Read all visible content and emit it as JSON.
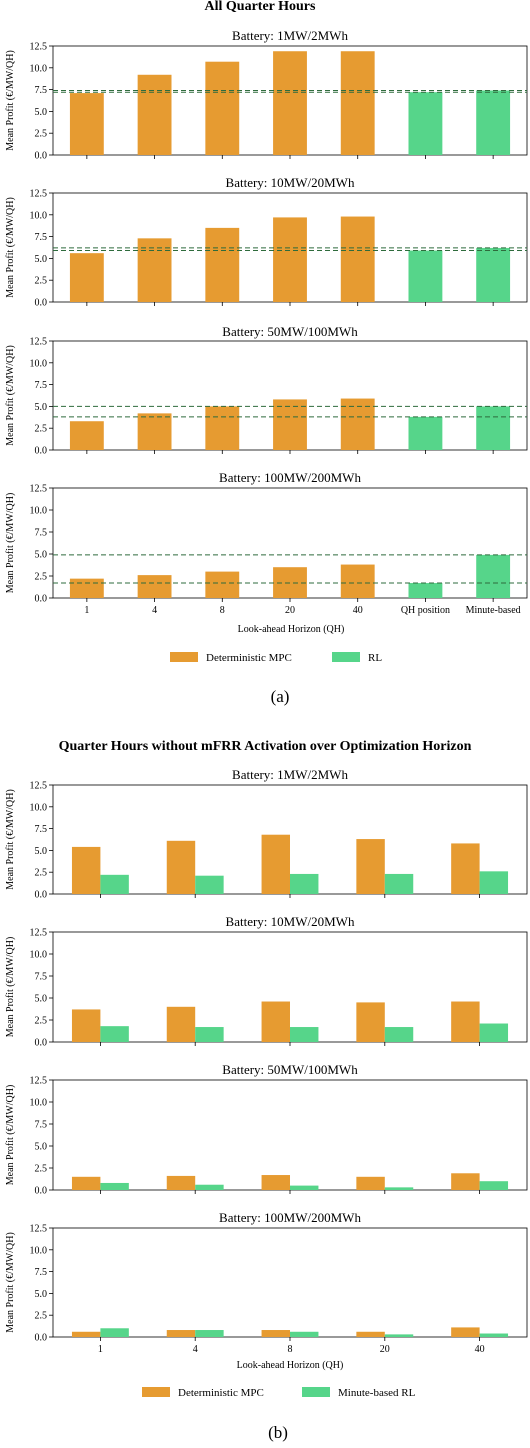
{
  "colors": {
    "mpc": "#E69B31",
    "rl": "#56D58A",
    "ref_line": "#2E6B3C"
  },
  "figure_a": {
    "title": "All Quarter Hours",
    "ylabel": "Mean Profit (€/MW/QH)",
    "xlabel": "Look-ahead Horizon (QH)",
    "caption": "(a)",
    "legend": [
      "Deterministic MPC",
      "RL"
    ],
    "categories": [
      "1",
      "4",
      "8",
      "20",
      "40",
      "QH position",
      "Minute-based"
    ],
    "yticks": [
      "0.0",
      "2.5",
      "5.0",
      "7.5",
      "10.0",
      "12.5"
    ],
    "panels": [
      {
        "title": "Battery: 1MW/2MWh"
      },
      {
        "title": "Battery: 10MW/20MWh"
      },
      {
        "title": "Battery: 50MW/100MWh"
      },
      {
        "title": "Battery: 100MW/200MWh"
      }
    ]
  },
  "figure_b": {
    "title": "Quarter Hours without mFRR Activation over Optimization Horizon",
    "ylabel": "Mean Profit (€/MW/QH)",
    "xlabel": "Look-ahead Horizon (QH)",
    "caption": "(b)",
    "legend": [
      "Deterministic MPC",
      "Minute-based RL"
    ],
    "categories": [
      "1",
      "4",
      "8",
      "20",
      "40"
    ],
    "yticks": [
      "0.0",
      "2.5",
      "5.0",
      "7.5",
      "10.0",
      "12.5"
    ],
    "panels": [
      {
        "title": "Battery: 1MW/2MWh"
      },
      {
        "title": "Battery: 10MW/20MWh"
      },
      {
        "title": "Battery: 50MW/100MWh"
      },
      {
        "title": "Battery: 100MW/200MWh"
      }
    ]
  },
  "chart_data": [
    {
      "type": "bar",
      "title": "Battery: 1MW/2MWh",
      "ylabel": "Mean Profit (€/MW/QH)",
      "ylim": [
        0,
        12.5
      ],
      "categories": [
        "1",
        "4",
        "8",
        "20",
        "40",
        "QH position",
        "Minute-based"
      ],
      "series": [
        {
          "name": "Deterministic MPC",
          "values": [
            7.1,
            9.2,
            10.7,
            11.9,
            11.9,
            null,
            null
          ]
        },
        {
          "name": "RL",
          "values": [
            null,
            null,
            null,
            null,
            null,
            7.2,
            7.4
          ]
        }
      ],
      "reference_lines": [
        7.2,
        7.4
      ]
    },
    {
      "type": "bar",
      "title": "Battery: 10MW/20MWh",
      "ylabel": "Mean Profit (€/MW/QH)",
      "ylim": [
        0,
        12.5
      ],
      "categories": [
        "1",
        "4",
        "8",
        "20",
        "40",
        "QH position",
        "Minute-based"
      ],
      "series": [
        {
          "name": "Deterministic MPC",
          "values": [
            5.6,
            7.3,
            8.5,
            9.7,
            9.8,
            null,
            null
          ]
        },
        {
          "name": "RL",
          "values": [
            null,
            null,
            null,
            null,
            null,
            5.9,
            6.2
          ]
        }
      ],
      "reference_lines": [
        5.9,
        6.2
      ]
    },
    {
      "type": "bar",
      "title": "Battery: 50MW/100MWh",
      "ylabel": "Mean Profit (€/MW/QH)",
      "ylim": [
        0,
        12.5
      ],
      "categories": [
        "1",
        "4",
        "8",
        "20",
        "40",
        "QH position",
        "Minute-based"
      ],
      "series": [
        {
          "name": "Deterministic MPC",
          "values": [
            3.3,
            4.2,
            5.0,
            5.8,
            5.9,
            null,
            null
          ]
        },
        {
          "name": "RL",
          "values": [
            null,
            null,
            null,
            null,
            null,
            3.8,
            5.0
          ]
        }
      ],
      "reference_lines": [
        3.8,
        5.0
      ]
    },
    {
      "type": "bar",
      "title": "Battery: 100MW/200MWh",
      "ylabel": "Mean Profit (€/MW/QH)",
      "xlabel": "Look-ahead Horizon (QH)",
      "ylim": [
        0,
        12.5
      ],
      "categories": [
        "1",
        "4",
        "8",
        "20",
        "40",
        "QH position",
        "Minute-based"
      ],
      "series": [
        {
          "name": "Deterministic MPC",
          "values": [
            2.2,
            2.6,
            3.0,
            3.5,
            3.8,
            null,
            null
          ]
        },
        {
          "name": "RL",
          "values": [
            null,
            null,
            null,
            null,
            null,
            1.7,
            4.9
          ]
        }
      ],
      "reference_lines": [
        1.7,
        4.9
      ]
    },
    {
      "type": "bar",
      "title": "Battery: 1MW/2MWh",
      "ylabel": "Mean Profit (€/MW/QH)",
      "ylim": [
        0,
        12.5
      ],
      "categories": [
        "1",
        "4",
        "8",
        "20",
        "40"
      ],
      "series": [
        {
          "name": "Deterministic MPC",
          "values": [
            5.4,
            6.1,
            6.8,
            6.3,
            5.8
          ]
        },
        {
          "name": "Minute-based RL",
          "values": [
            2.2,
            2.1,
            2.3,
            2.3,
            2.6
          ]
        }
      ]
    },
    {
      "type": "bar",
      "title": "Battery: 10MW/20MWh",
      "ylabel": "Mean Profit (€/MW/QH)",
      "ylim": [
        0,
        12.5
      ],
      "categories": [
        "1",
        "4",
        "8",
        "20",
        "40"
      ],
      "series": [
        {
          "name": "Deterministic MPC",
          "values": [
            3.7,
            4.0,
            4.6,
            4.5,
            4.6
          ]
        },
        {
          "name": "Minute-based RL",
          "values": [
            1.8,
            1.7,
            1.7,
            1.7,
            2.1
          ]
        }
      ]
    },
    {
      "type": "bar",
      "title": "Battery: 50MW/100MWh",
      "ylabel": "Mean Profit (€/MW/QH)",
      "ylim": [
        0,
        12.5
      ],
      "categories": [
        "1",
        "4",
        "8",
        "20",
        "40"
      ],
      "series": [
        {
          "name": "Deterministic MPC",
          "values": [
            1.5,
            1.6,
            1.7,
            1.5,
            1.9
          ]
        },
        {
          "name": "Minute-based RL",
          "values": [
            0.8,
            0.6,
            0.5,
            0.3,
            1.0
          ]
        }
      ]
    },
    {
      "type": "bar",
      "title": "Battery: 100MW/200MWh",
      "ylabel": "Mean Profit (€/MW/QH)",
      "xlabel": "Look-ahead Horizon (QH)",
      "ylim": [
        0,
        12.5
      ],
      "categories": [
        "1",
        "4",
        "8",
        "20",
        "40"
      ],
      "series": [
        {
          "name": "Deterministic MPC",
          "values": [
            0.6,
            0.8,
            0.8,
            0.6,
            1.1
          ]
        },
        {
          "name": "Minute-based RL",
          "values": [
            1.0,
            0.8,
            0.6,
            0.3,
            0.4
          ]
        }
      ]
    }
  ]
}
